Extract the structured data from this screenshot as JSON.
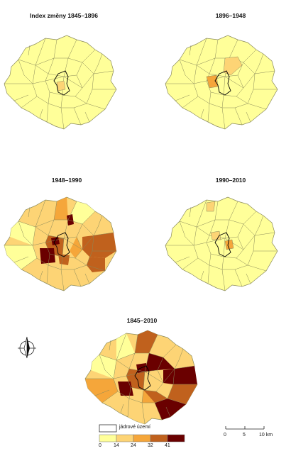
{
  "panels": [
    {
      "title": "Index změny 1845–1896"
    },
    {
      "title": "1896–1948"
    },
    {
      "title": "1948–1990"
    },
    {
      "title": "1990–2010"
    },
    {
      "title": "1845–2010"
    }
  ],
  "legend": {
    "core_label": "jádrové území",
    "breaks": [
      "0",
      "14",
      "24",
      "32",
      "41"
    ],
    "colors": [
      "#ffff99",
      "#fdd475",
      "#f5a63a",
      "#c0611d",
      "#6a0000"
    ]
  },
  "scalebar": {
    "ticks": [
      "0",
      "5",
      "10 km"
    ]
  },
  "north_arrow": {
    "icon": "north-arrow-icon"
  }
}
